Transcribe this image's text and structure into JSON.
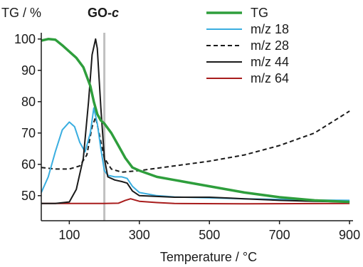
{
  "chart_data": {
    "type": "line",
    "title": "GO-c",
    "title_main": "GO-",
    "title_italic": "c",
    "xlabel": "Temperature / °C",
    "ylabel": "TG / %",
    "xlim": [
      20,
      910
    ],
    "ylim": [
      42,
      102
    ],
    "xticks": [
      100,
      300,
      500,
      700,
      900
    ],
    "yticks": [
      50,
      60,
      70,
      80,
      90,
      100
    ],
    "grid": false,
    "legend_position": "top-right",
    "vertical_marker": {
      "x": 200,
      "color": "#c0c0c0"
    },
    "series": [
      {
        "name": "TG",
        "color": "#2e9e3c",
        "dash": "solid",
        "points": [
          [
            20,
            99.5
          ],
          [
            40,
            100
          ],
          [
            60,
            99.8
          ],
          [
            80,
            98
          ],
          [
            100,
            96
          ],
          [
            120,
            94
          ],
          [
            140,
            91
          ],
          [
            160,
            85
          ],
          [
            170,
            80
          ],
          [
            180,
            76
          ],
          [
            190,
            74
          ],
          [
            200,
            73
          ],
          [
            220,
            70
          ],
          [
            240,
            66
          ],
          [
            260,
            62
          ],
          [
            280,
            59
          ],
          [
            300,
            58
          ],
          [
            350,
            56
          ],
          [
            400,
            55
          ],
          [
            500,
            53
          ],
          [
            600,
            51
          ],
          [
            700,
            49.5
          ],
          [
            800,
            48.5
          ],
          [
            900,
            48
          ]
        ]
      },
      {
        "name": "m/z 18",
        "color": "#3aaee0",
        "dash": "solid",
        "points": [
          [
            20,
            51
          ],
          [
            40,
            56
          ],
          [
            60,
            64
          ],
          [
            80,
            71
          ],
          [
            100,
            73.5
          ],
          [
            115,
            72
          ],
          [
            130,
            67
          ],
          [
            145,
            64
          ],
          [
            160,
            70
          ],
          [
            170,
            78
          ],
          [
            180,
            73
          ],
          [
            190,
            65
          ],
          [
            200,
            58
          ],
          [
            210,
            56.5
          ],
          [
            230,
            56
          ],
          [
            250,
            56
          ],
          [
            265,
            55.5
          ],
          [
            280,
            53
          ],
          [
            300,
            51
          ],
          [
            350,
            50
          ],
          [
            400,
            49.6
          ],
          [
            500,
            49.3
          ],
          [
            600,
            49
          ],
          [
            700,
            48.8
          ],
          [
            800,
            48.6
          ],
          [
            900,
            48.5
          ]
        ]
      },
      {
        "name": "m/z 28",
        "color": "#1a1a1a",
        "dash": "dashed",
        "points": [
          [
            20,
            59
          ],
          [
            60,
            58.5
          ],
          [
            100,
            58.5
          ],
          [
            130,
            59.5
          ],
          [
            150,
            63
          ],
          [
            165,
            72
          ],
          [
            175,
            75
          ],
          [
            185,
            70
          ],
          [
            200,
            62
          ],
          [
            220,
            58.5
          ],
          [
            250,
            57.5
          ],
          [
            300,
            58
          ],
          [
            400,
            59.5
          ],
          [
            500,
            61
          ],
          [
            600,
            63
          ],
          [
            700,
            66
          ],
          [
            800,
            70
          ],
          [
            900,
            77
          ]
        ]
      },
      {
        "name": "m/z 44",
        "color": "#1a1a1a",
        "dash": "solid",
        "points": [
          [
            20,
            47.5
          ],
          [
            60,
            47.5
          ],
          [
            100,
            48
          ],
          [
            120,
            52
          ],
          [
            140,
            62
          ],
          [
            155,
            80
          ],
          [
            165,
            95
          ],
          [
            175,
            100
          ],
          [
            180,
            97
          ],
          [
            190,
            78
          ],
          [
            200,
            62
          ],
          [
            210,
            56
          ],
          [
            230,
            55
          ],
          [
            250,
            54.5
          ],
          [
            265,
            54
          ],
          [
            280,
            51.5
          ],
          [
            300,
            50
          ],
          [
            400,
            49.5
          ],
          [
            500,
            49.5
          ],
          [
            560,
            49.2
          ],
          [
            600,
            49
          ],
          [
            700,
            48.5
          ],
          [
            800,
            48.2
          ],
          [
            900,
            48
          ]
        ]
      },
      {
        "name": "m/z 64",
        "color": "#a81c1c",
        "dash": "solid",
        "points": [
          [
            20,
            47.5
          ],
          [
            100,
            47.5
          ],
          [
            200,
            47.5
          ],
          [
            240,
            47.6
          ],
          [
            260,
            48.5
          ],
          [
            275,
            49
          ],
          [
            300,
            48.2
          ],
          [
            350,
            47.8
          ],
          [
            400,
            47.5
          ],
          [
            600,
            47.4
          ],
          [
            900,
            47.5
          ]
        ]
      }
    ]
  }
}
